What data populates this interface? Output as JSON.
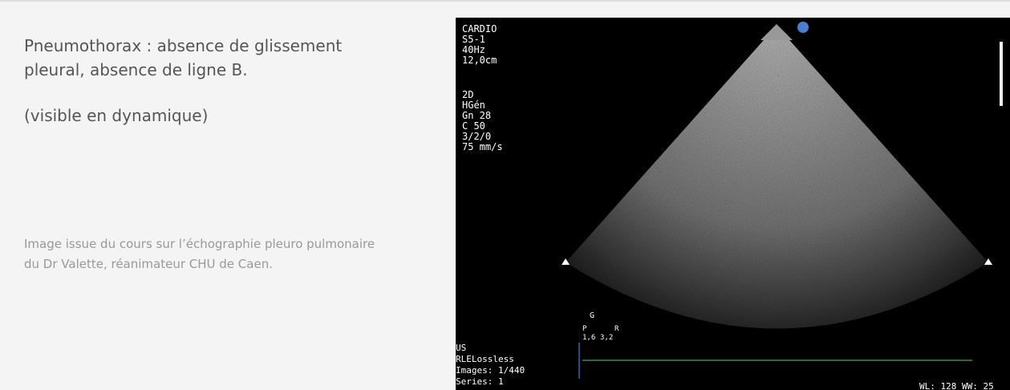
{
  "caption": {
    "title": "Pneumothorax : absence de glissement pleural, absence de ligne B.",
    "note": "(visible en dynamique)",
    "credit": "Image issue du cours sur l’échographie pleuro pulmonaire du Dr Valette, réanimateur CHU de Caen."
  },
  "image": {
    "top_left": [
      "CARDIO",
      "S5-1",
      "40Hz",
      "12,0cm"
    ],
    "settings": [
      "2D",
      "HGén",
      "Gn 28",
      "C 50",
      "3/2/0",
      "75 mm/s"
    ],
    "bottom_left": [
      "US",
      "RLELossless",
      "Images: 1/440",
      "Series: 1"
    ],
    "bottom_right": "WL: 128 WW: 25",
    "probe": {
      "badge": "G",
      "left": "P",
      "right": "R",
      "left_value": "1,6",
      "right_value": "3,2"
    }
  }
}
